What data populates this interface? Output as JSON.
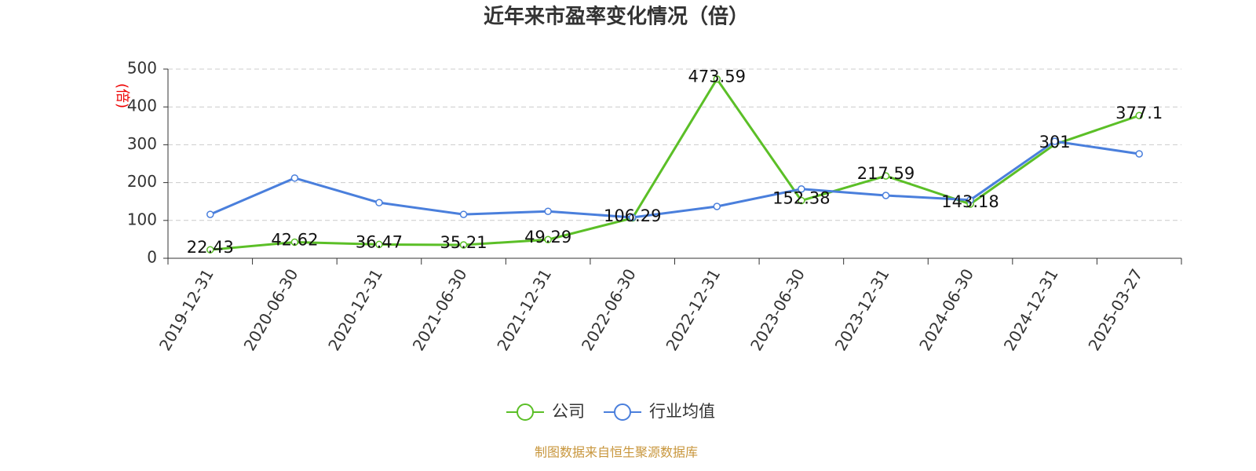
{
  "chart_data": {
    "type": "line",
    "title": "近年来市盈率变化情况（倍）",
    "y_label": "(倍)",
    "categories": [
      "2019-12-31",
      "2020-06-30",
      "2020-12-31",
      "2021-06-30",
      "2021-12-31",
      "2022-06-30",
      "2022-12-31",
      "2023-06-30",
      "2023-12-31",
      "2024-06-30",
      "2024-12-31",
      "2025-03-27"
    ],
    "series": [
      {
        "name": "公司",
        "color": "#5bbf27",
        "show_labels": true,
        "values": [
          22.43,
          42.62,
          36.47,
          35.21,
          49.29,
          106.29,
          473.59,
          152.38,
          217.59,
          143.18,
          301,
          377.1
        ]
      },
      {
        "name": "行业均值",
        "color": "#4a7fdc",
        "show_labels": false,
        "values": [
          116,
          212,
          147,
          116,
          124,
          108,
          137,
          183,
          166,
          154,
          309,
          276
        ]
      }
    ],
    "ylim": [
      0,
      500
    ],
    "yticks": [
      0,
      100,
      200,
      300,
      400,
      500
    ],
    "grid": true,
    "source": "制图数据来自恒生聚源数据库"
  }
}
